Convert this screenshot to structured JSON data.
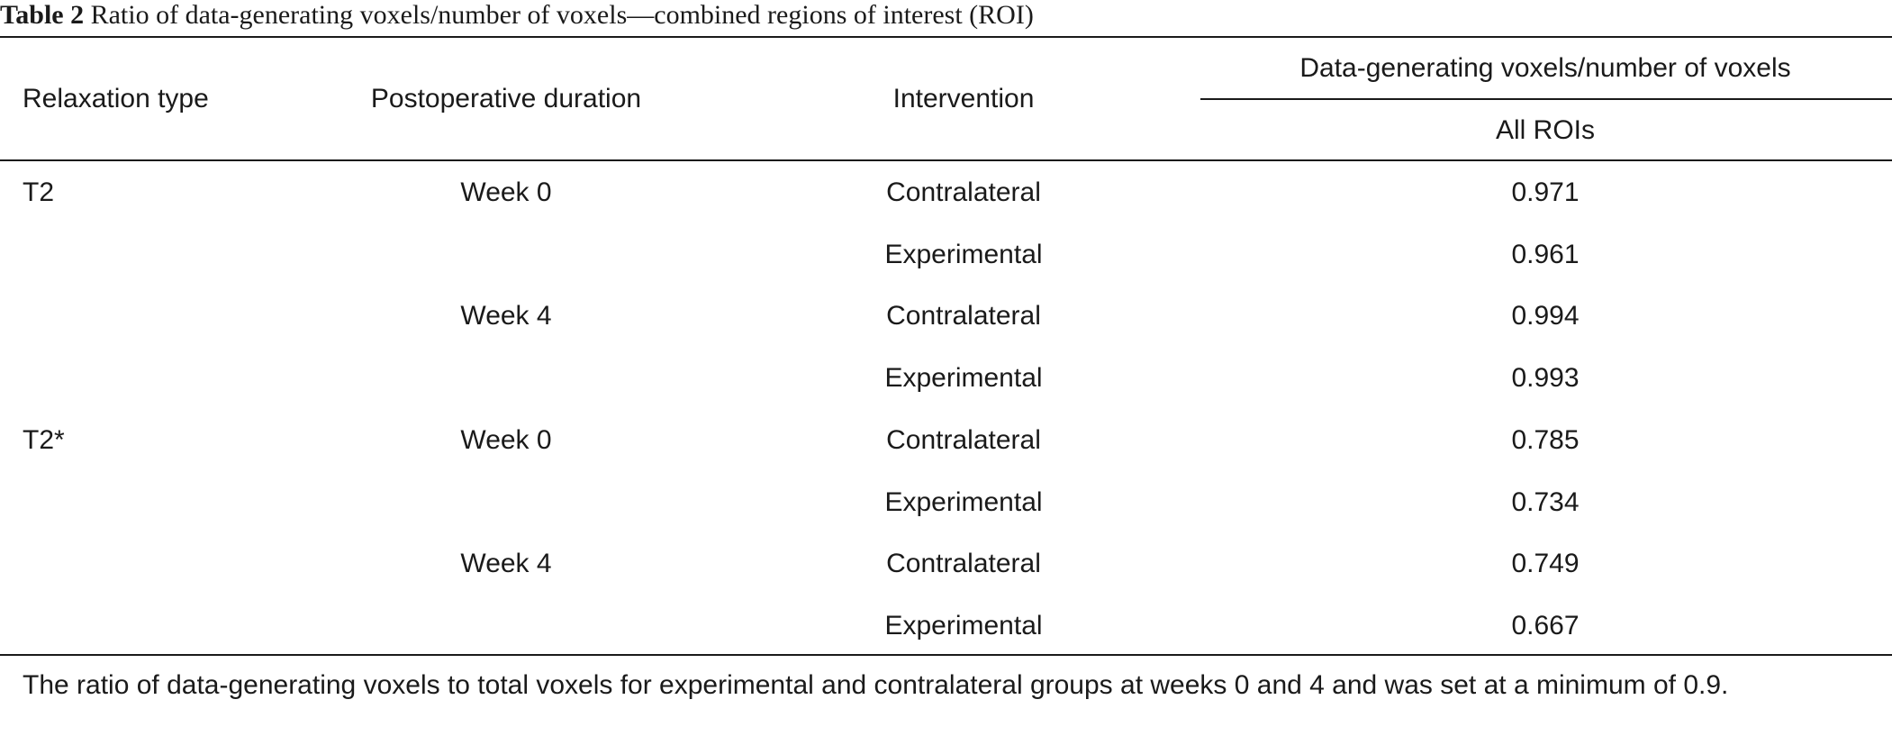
{
  "caption": {
    "label": "Table 2",
    "text": "Ratio of data-generating voxels/number of voxels—combined regions of interest (ROI)"
  },
  "headers": {
    "relaxation_type": "Relaxation type",
    "postoperative_duration": "Postoperative duration",
    "intervention": "Intervention",
    "group": "Data-generating voxels/number of voxels",
    "all_rois": "All ROIs"
  },
  "rows": [
    {
      "relaxation": "T2",
      "duration": "Week 0",
      "intervention": "Contralateral",
      "value": "0.971"
    },
    {
      "relaxation": "",
      "duration": "",
      "intervention": "Experimental",
      "value": "0.961"
    },
    {
      "relaxation": "",
      "duration": "Week 4",
      "intervention": "Contralateral",
      "value": "0.994"
    },
    {
      "relaxation": "",
      "duration": "",
      "intervention": "Experimental",
      "value": "0.993"
    },
    {
      "relaxation": "T2*",
      "duration": "Week 0",
      "intervention": "Contralateral",
      "value": "0.785"
    },
    {
      "relaxation": "",
      "duration": "",
      "intervention": "Experimental",
      "value": "0.734"
    },
    {
      "relaxation": "",
      "duration": "Week 4",
      "intervention": "Contralateral",
      "value": "0.749"
    },
    {
      "relaxation": "",
      "duration": "",
      "intervention": "Experimental",
      "value": "0.667"
    }
  ],
  "footnote": "The ratio of data-generating voxels to total voxels for experimental and contralateral groups at weeks 0 and 4 and was set at a minimum of 0.9."
}
